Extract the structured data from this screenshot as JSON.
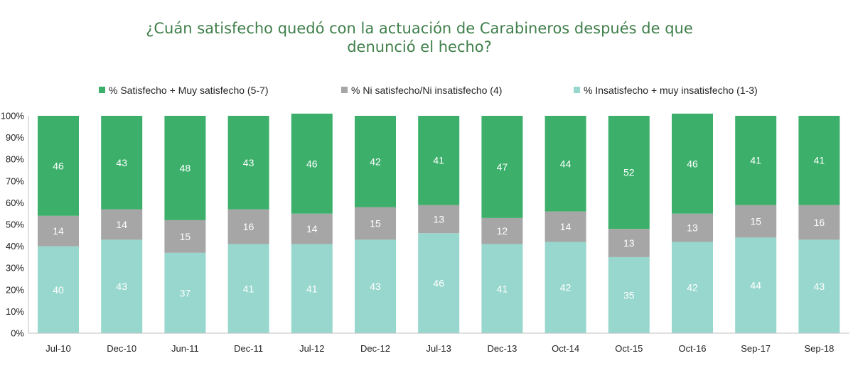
{
  "title": {
    "line1": "¿Cuán satisfecho quedó con la actuación de Carabineros después de que",
    "line2": "denunció el hecho?"
  },
  "colors": {
    "satisfied": "#3cb06b",
    "neutral": "#a6a6a6",
    "dissatisfied": "#98d7cd",
    "axis_text": "#222222",
    "axis_line": "#bfbfbf"
  },
  "chart_data": {
    "type": "bar",
    "stacked": true,
    "title": "¿Cuán satisfecho quedó con la actuación de Carabineros después de que denunció el hecho?",
    "xlabel": "",
    "ylabel": "",
    "ylim": [
      0,
      100
    ],
    "yticks": [
      "0%",
      "10%",
      "20%",
      "30%",
      "40%",
      "50%",
      "60%",
      "70%",
      "80%",
      "90%",
      "100%"
    ],
    "legend_position": "top",
    "categories": [
      "Jul-10",
      "Dec-10",
      "Jun-11",
      "Dec-11",
      "Jul-12",
      "Dec-12",
      "Jul-13",
      "Dec-13",
      "Oct-14",
      "Oct-15",
      "Oct-16",
      "Sep-17",
      "Sep-18"
    ],
    "series": [
      {
        "key": "dissatisfied",
        "name": "% Insatisfecho + muy insatisfecho (1-3)",
        "values": [
          40,
          43,
          37,
          41,
          41,
          43,
          46,
          41,
          42,
          35,
          42,
          44,
          43
        ]
      },
      {
        "key": "neutral",
        "name": "% Ni satisfecho/Ni insatisfecho (4)",
        "values": [
          14,
          14,
          15,
          16,
          14,
          15,
          13,
          12,
          14,
          13,
          13,
          15,
          16
        ]
      },
      {
        "key": "satisfied",
        "name": "% Satisfecho + Muy satisfecho (5-7)",
        "values": [
          46,
          43,
          48,
          43,
          46,
          42,
          41,
          47,
          44,
          52,
          46,
          41,
          41
        ]
      }
    ],
    "legend_order": [
      "satisfied",
      "neutral",
      "dissatisfied"
    ]
  }
}
